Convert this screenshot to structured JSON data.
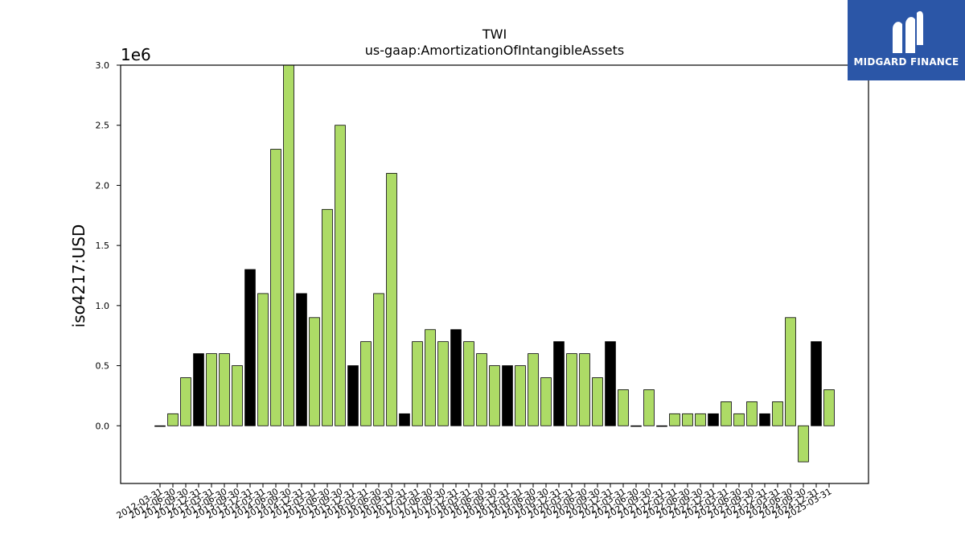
{
  "chart_data": {
    "type": "bar",
    "title": "TWI",
    "subtitle": "us-gaap:AmortizationOfIntangibleAssets",
    "ylabel": "iso4217:USD",
    "xlabel": "",
    "y_offset_label": "1e6",
    "ylim": [
      -480000,
      3000000
    ],
    "yticks": [
      0.0,
      0.5,
      1.0,
      1.5,
      2.0,
      2.5,
      3.0
    ],
    "ytick_labels": [
      "0.0",
      "0.5",
      "1.0",
      "1.5",
      "2.0",
      "2.5",
      "3.0"
    ],
    "grid": false,
    "categories": [
      "2012-03-31",
      "2012-06-30",
      "2012-09-30",
      "2012-12-31",
      "2013-03-31",
      "2013-06-30",
      "2013-09-30",
      "2013-12-31",
      "2014-03-31",
      "2014-06-30",
      "2014-09-30",
      "2014-12-31",
      "2015-03-31",
      "2015-06-30",
      "2015-09-30",
      "2015-12-31",
      "2016-03-31",
      "2016-06-30",
      "2016-09-30",
      "2016-12-31",
      "2017-03-31",
      "2017-06-30",
      "2017-09-30",
      "2017-12-31",
      "2018-03-31",
      "2018-06-30",
      "2018-09-30",
      "2018-12-31",
      "2019-03-31",
      "2019-06-30",
      "2019-09-30",
      "2019-12-31",
      "2020-03-31",
      "2020-06-30",
      "2020-09-30",
      "2020-12-31",
      "2021-03-31",
      "2021-06-30",
      "2021-09-30",
      "2021-12-31",
      "2022-03-31",
      "2022-06-30",
      "2022-09-30",
      "2022-12-31",
      "2023-03-31",
      "2023-06-30",
      "2023-09-30",
      "2023-12-31",
      "2024-03-31",
      "2024-06-30",
      "2024-09-30",
      "2024-12-31",
      "2025-03-31"
    ],
    "values": [
      0,
      100000,
      400000,
      600000,
      600000,
      600000,
      500000,
      1300000,
      1100000,
      2300000,
      3000000,
      1100000,
      900000,
      1800000,
      2500000,
      500000,
      700000,
      1100000,
      2100000,
      100000,
      700000,
      800000,
      700000,
      800000,
      700000,
      600000,
      500000,
      500000,
      500000,
      600000,
      400000,
      700000,
      600000,
      600000,
      400000,
      700000,
      300000,
      0,
      300000,
      0,
      100000,
      100000,
      100000,
      100000,
      200000,
      100000,
      200000,
      100000,
      200000,
      900000,
      -300000,
      700000,
      300000
    ],
    "bar_colors": {
      "quarter": "#addb66",
      "annual": "#000000"
    },
    "bar_kind": [
      "quarter",
      "quarter",
      "quarter",
      "annual",
      "quarter",
      "quarter",
      "quarter",
      "annual",
      "quarter",
      "quarter",
      "quarter",
      "annual",
      "quarter",
      "quarter",
      "quarter",
      "annual",
      "quarter",
      "quarter",
      "quarter",
      "annual",
      "quarter",
      "quarter",
      "quarter",
      "annual",
      "quarter",
      "quarter",
      "quarter",
      "annual",
      "quarter",
      "quarter",
      "quarter",
      "annual",
      "quarter",
      "quarter",
      "quarter",
      "annual",
      "quarter",
      "quarter",
      "quarter",
      "annual",
      "quarter",
      "quarter",
      "quarter",
      "annual",
      "quarter",
      "quarter",
      "quarter",
      "annual",
      "quarter",
      "quarter",
      "quarter",
      "annual",
      "quarter"
    ]
  },
  "logo": {
    "text": "MIDGARD FINANCE",
    "bg_color": "#2b56a7"
  }
}
